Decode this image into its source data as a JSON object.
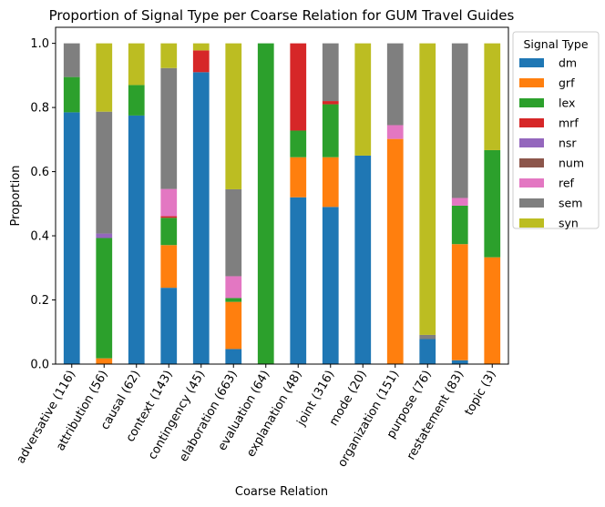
{
  "chart_data": {
    "type": "bar",
    "stacked": true,
    "title": "Proportion of Signal Type per Coarse Relation for GUM Travel Guides",
    "xlabel": "Coarse Relation",
    "ylabel": "Proportion",
    "ylim": [
      0,
      1.05
    ],
    "yticks": [
      "0.0",
      "0.2",
      "0.4",
      "0.6",
      "0.8",
      "1.0"
    ],
    "legend": {
      "title": "Signal Type",
      "placement": "outside-right-top"
    },
    "categories": [
      "adversative (116)",
      "attribution (56)",
      "causal (62)",
      "context (143)",
      "contingency (45)",
      "elaboration (663)",
      "evaluation (64)",
      "explanation (48)",
      "joint (316)",
      "mode (20)",
      "organization (151)",
      "purpose (76)",
      "restatement (83)",
      "topic (3)"
    ],
    "series": [
      {
        "name": "dm",
        "color": "#1f77b4",
        "values": [
          0.785,
          0.0,
          0.775,
          0.238,
          0.91,
          0.047,
          0.0,
          0.52,
          0.49,
          0.65,
          0.0,
          0.078,
          0.012,
          0.0
        ]
      },
      {
        "name": "grf",
        "color": "#ff7f0e",
        "values": [
          0.0,
          0.018,
          0.0,
          0.133,
          0.0,
          0.147,
          0.0,
          0.125,
          0.155,
          0.0,
          0.702,
          0.0,
          0.362,
          0.333
        ]
      },
      {
        "name": "lex",
        "color": "#2ca02c",
        "values": [
          0.11,
          0.375,
          0.095,
          0.085,
          0.0,
          0.012,
          1.0,
          0.083,
          0.165,
          0.0,
          0.0,
          0.0,
          0.12,
          0.334
        ]
      },
      {
        "name": "mrf",
        "color": "#d62728",
        "values": [
          0.0,
          0.0,
          0.0,
          0.005,
          0.068,
          0.0,
          0.0,
          0.272,
          0.01,
          0.0,
          0.0,
          0.0,
          0.0,
          0.0
        ]
      },
      {
        "name": "nsr",
        "color": "#9467bd",
        "values": [
          0.0,
          0.014,
          0.0,
          0.0,
          0.0,
          0.0,
          0.0,
          0.0,
          0.0,
          0.0,
          0.0,
          0.0,
          0.0,
          0.0
        ]
      },
      {
        "name": "num",
        "color": "#8c564b",
        "values": [
          0.0,
          0.0,
          0.0,
          0.0,
          0.0,
          0.0,
          0.0,
          0.0,
          0.0,
          0.0,
          0.0,
          0.0,
          0.0,
          0.0
        ]
      },
      {
        "name": "ref",
        "color": "#e377c2",
        "values": [
          0.0,
          0.0,
          0.0,
          0.085,
          0.0,
          0.068,
          0.0,
          0.0,
          0.0,
          0.0,
          0.043,
          0.0,
          0.024,
          0.0
        ]
      },
      {
        "name": "sem",
        "color": "#7f7f7f",
        "values": [
          0.105,
          0.38,
          0.0,
          0.377,
          0.0,
          0.271,
          0.0,
          0.0,
          0.18,
          0.0,
          0.255,
          0.013,
          0.482,
          0.0
        ]
      },
      {
        "name": "syn",
        "color": "#bcbd22",
        "values": [
          0.0,
          0.213,
          0.13,
          0.077,
          0.022,
          0.455,
          0.0,
          0.0,
          0.0,
          0.35,
          0.0,
          0.909,
          0.0,
          0.333
        ]
      }
    ]
  }
}
